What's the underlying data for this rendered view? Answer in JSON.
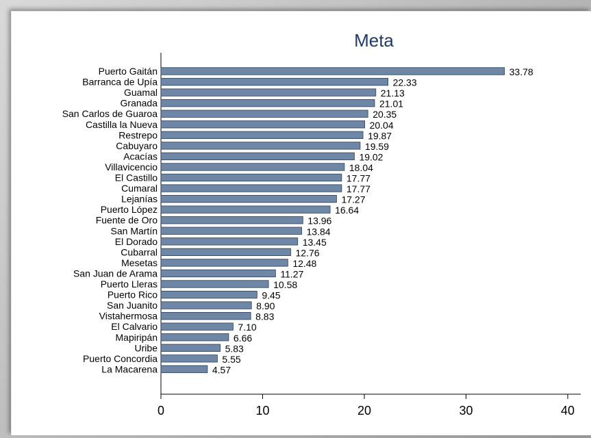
{
  "chart_data": {
    "type": "bar",
    "orientation": "horizontal",
    "title": "Meta",
    "xlabel": "",
    "ylabel": "",
    "xlim": [
      0,
      40
    ],
    "xticks": [
      0,
      10,
      20,
      30,
      40
    ],
    "grid": false,
    "bar_color": "#6e87a6",
    "title_color": "#1f3a68",
    "categories": [
      "Puerto Gaitán",
      "Barranca de Upía",
      "Guamal",
      "Granada",
      "San Carlos de Guaroa",
      "Castilla la Nueva",
      "Restrepo",
      "Cabuyaro",
      "Acacías",
      "Villavicencio",
      "El Castillo",
      "Cumaral",
      "Lejanías",
      "Puerto López",
      "Fuente de Oro",
      "San Martín",
      "El Dorado",
      "Cubarral",
      "Mesetas",
      "San Juan de Arama",
      "Puerto Lleras",
      "Puerto Rico",
      "San Juanito",
      "Vistahermosa",
      "El Calvario",
      "Mapiripán",
      "Uribe",
      "Puerto Concordia",
      "La Macarena"
    ],
    "values": [
      33.78,
      22.33,
      21.13,
      21.01,
      20.35,
      20.04,
      19.87,
      19.59,
      19.02,
      18.04,
      17.77,
      17.77,
      17.27,
      16.64,
      13.96,
      13.84,
      13.45,
      12.76,
      12.48,
      11.27,
      10.58,
      9.45,
      8.9,
      8.83,
      7.1,
      6.66,
      5.83,
      5.55,
      4.57
    ],
    "value_labels": [
      "33.78",
      "22.33",
      "21.13",
      "21.01",
      "20.35",
      "20.04",
      "19.87",
      "19.59",
      "19.02",
      "18.04",
      "17.77",
      "17.77",
      "17.27",
      "16.64",
      "13.96",
      "13.84",
      "13.45",
      "12.76",
      "12.48",
      "11.27",
      "10.58",
      "9.45",
      "8.90",
      "8.83",
      "7.10",
      "6.66",
      "5.83",
      "5.55",
      "4.57"
    ]
  }
}
